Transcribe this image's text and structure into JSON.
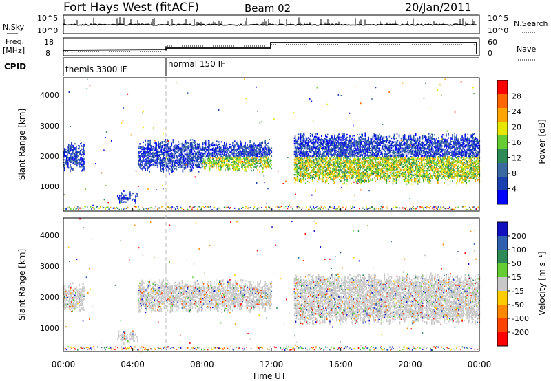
{
  "header": {
    "station": "Fort Hays West (fitACF)",
    "beam": "Beam 02",
    "date": "20/Jan/2011"
  },
  "noise_panel": {
    "left_label": "N.Sky",
    "left_ticks": [
      "10^5",
      "10^0"
    ],
    "right_label": "N.Search",
    "right_ticks": [
      "10^5",
      "10^0"
    ]
  },
  "freq_panel": {
    "left_label_1": "Freq.",
    "left_label_2": "[MHz]",
    "left_ticks": [
      "18",
      "8"
    ],
    "right_label": "Nave",
    "right_ticks": [
      "60",
      "0"
    ]
  },
  "cpid_panel": {
    "label": "CPID",
    "modes": [
      "themis 3300 IF",
      "normal 150 IF"
    ]
  },
  "x_axis": {
    "title": "Time UT",
    "ticks": [
      "00:00",
      "04:00",
      "08:00",
      "12:00",
      "16:00",
      "20:00",
      "00:00"
    ]
  },
  "chart_data": [
    {
      "type": "heatmap",
      "name": "power",
      "xlabel": "Time UT",
      "ylabel": "Slant Range [km]",
      "xlim": [
        0,
        24
      ],
      "ylim": [
        180,
        4600
      ],
      "y_ticks": [
        "1000",
        "2000",
        "3000",
        "4000"
      ],
      "colorbar": {
        "label": "Power [dB]",
        "ticks": [
          "28",
          "24",
          "20",
          "16",
          "12",
          "8",
          "4"
        ],
        "colors": [
          "#0000ff",
          "#1a40b0",
          "#3a6aa0",
          "#2e8b57",
          "#66cc33",
          "#e6e600",
          "#ffa500",
          "#ff6600",
          "#ff0000"
        ]
      },
      "echo_regions": [
        {
          "t": [
            0.0,
            1.2
          ],
          "range": [
            1500,
            2500
          ]
        },
        {
          "t": [
            3.1,
            4.3
          ],
          "range": [
            400,
            900
          ]
        },
        {
          "t": [
            4.3,
            12.0
          ],
          "range": [
            1500,
            2600
          ]
        },
        {
          "t": [
            13.3,
            24.0
          ],
          "range": [
            1100,
            2800
          ]
        }
      ]
    },
    {
      "type": "heatmap",
      "name": "velocity",
      "xlabel": "Time UT",
      "ylabel": "Slant Range [km]",
      "xlim": [
        0,
        24
      ],
      "ylim": [
        180,
        4600
      ],
      "y_ticks": [
        "1000",
        "2000",
        "3000",
        "4000"
      ],
      "colorbar": {
        "label": "Velocity [m s⁻¹]",
        "ticks": [
          "200",
          "100",
          "50",
          "15",
          "-15",
          "-50",
          "-100",
          "-200"
        ],
        "colors": [
          "#1010c0",
          "#3060b0",
          "#2e8b57",
          "#66cc33",
          "#c8c8c8",
          "#ffcc00",
          "#ff8800",
          "#ff4400",
          "#ff0000"
        ]
      },
      "dominant_value": "ground scatter (grey)"
    }
  ]
}
